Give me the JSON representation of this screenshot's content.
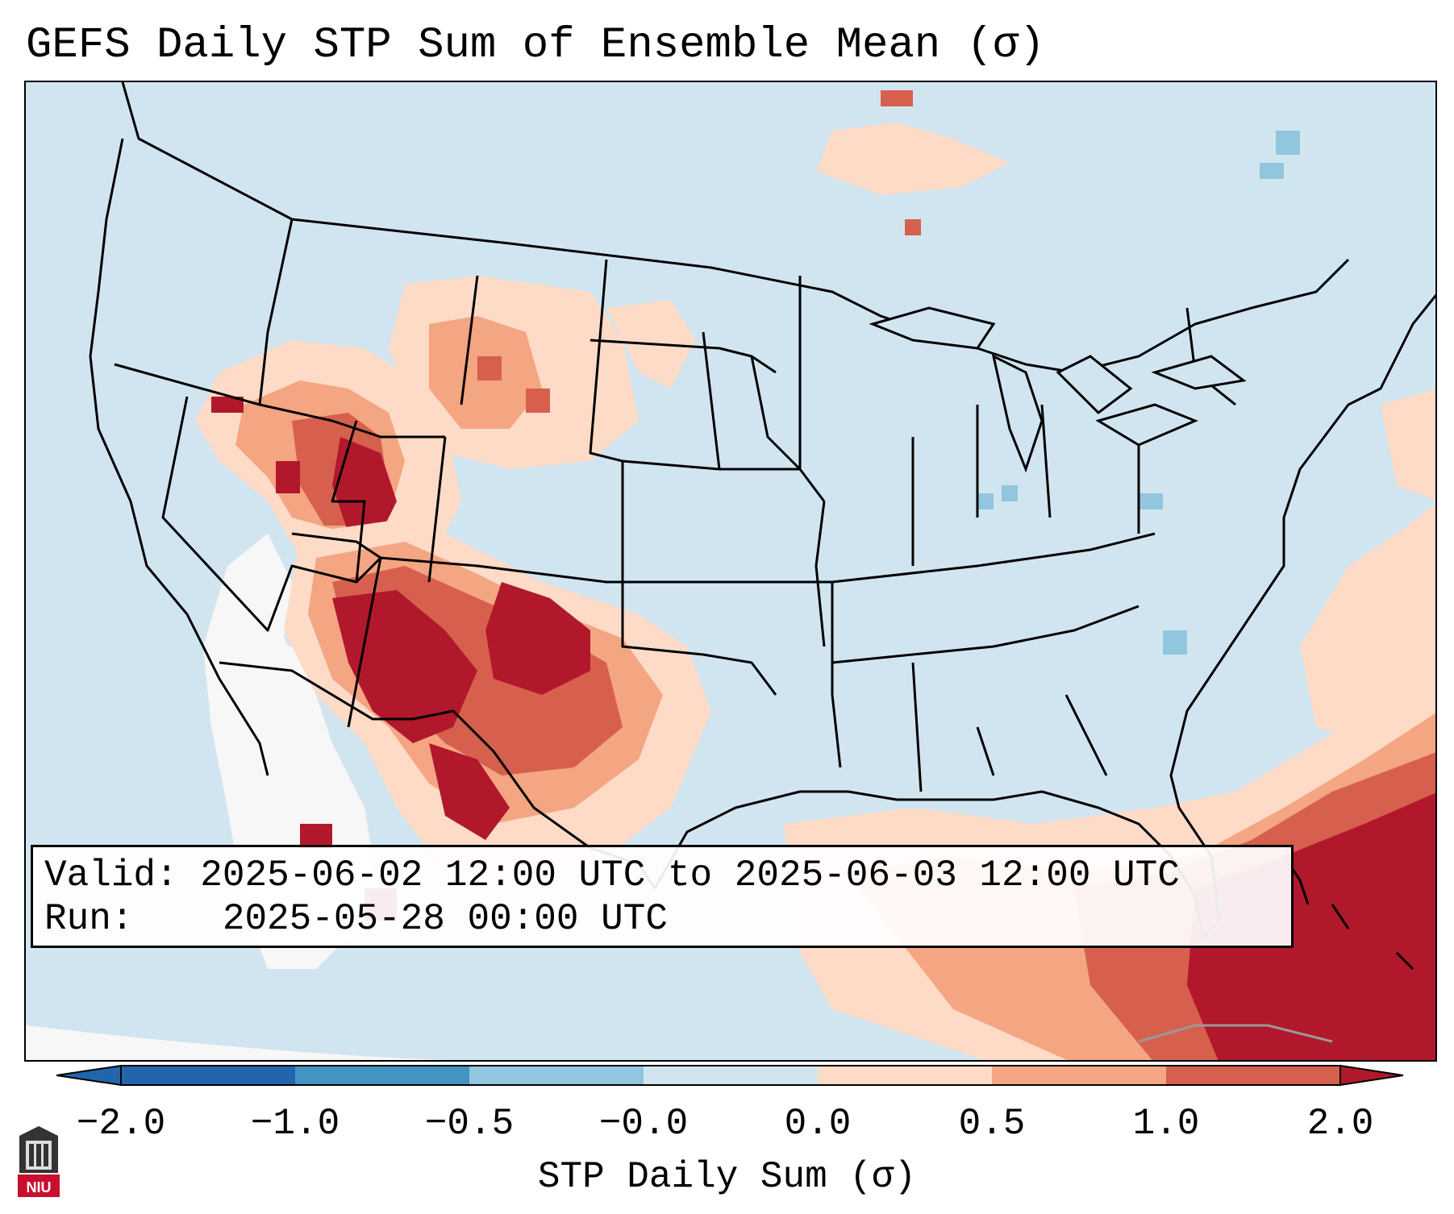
{
  "title": "GEFS Daily STP Sum of Ensemble Mean (σ)",
  "info": {
    "valid_label": "Valid:",
    "valid_value": "2025-06-02 12:00 UTC to 2025-06-03 12:00 UTC",
    "run_label": "Run:",
    "run_value": "2025-05-28 00:00 UTC"
  },
  "colorbar": {
    "label": "STP Daily Sum (σ)",
    "ticks": [
      "−2.0",
      "−1.0",
      "−0.5",
      "−0.0",
      "0.0",
      "0.5",
      "1.0",
      "2.0"
    ],
    "colors": [
      "#2166ac",
      "#4393c3",
      "#92c5de",
      "#d1e5f0",
      "#f7f7f7",
      "#fddbc7",
      "#f4a582",
      "#d6604d",
      "#b2182b"
    ],
    "extend": "both"
  },
  "logo": {
    "text": "NIU"
  },
  "map": {
    "region": "Continental United States",
    "background_color": "#d1e5f0",
    "anomaly_regions": [
      "Great Basin / Idaho / Utah",
      "Arizona / New Mexico",
      "Texas Panhandle / West Texas",
      "Gulf of Mexico",
      "Florida / Bahamas / Western Atlantic"
    ]
  }
}
